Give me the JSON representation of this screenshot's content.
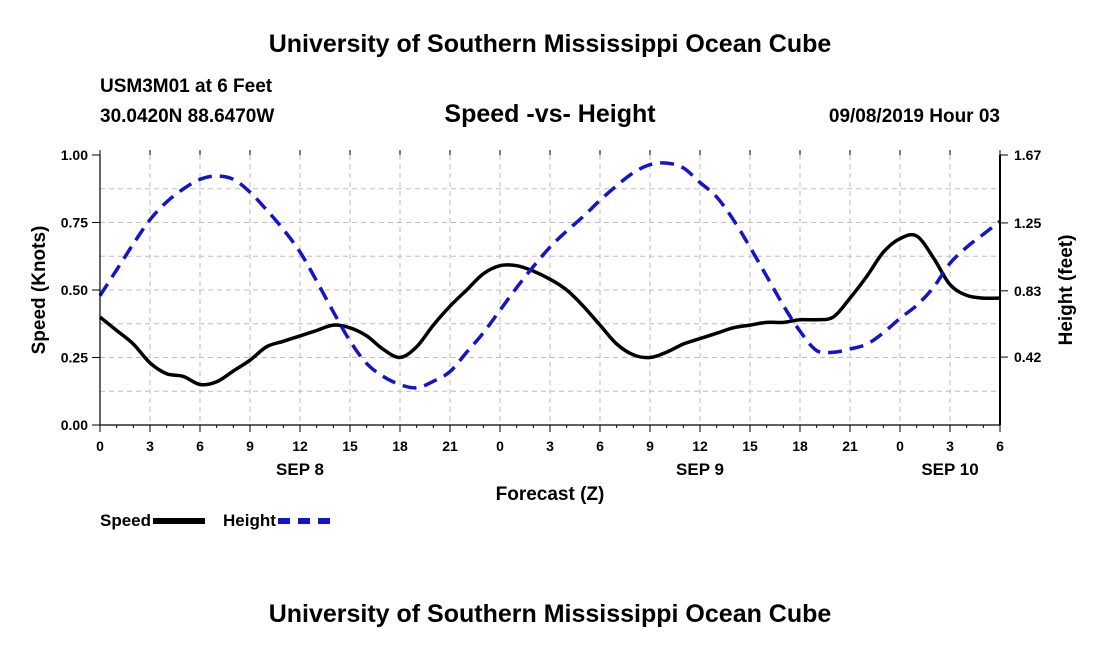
{
  "header": {
    "title": "University of Southern Mississippi Ocean Cube",
    "station": "USM3M01 at 6 Feet",
    "coordinates": "30.0420N 88.6470W",
    "chart_title": "Speed -vs- Height",
    "date": "09/08/2019 Hour 03"
  },
  "footer": {
    "title": "University of Southern Mississippi Ocean Cube"
  },
  "legend": {
    "speed_label": "Speed",
    "height_label": "Height"
  },
  "colors": {
    "speed": "#000000",
    "height": "#1414c8",
    "grid": "#bdbdbd"
  },
  "chart_data": {
    "type": "line",
    "title": "Speed -vs- Height",
    "xlabel": "Forecast (Z)",
    "ylabel": "Speed (Knots)",
    "y2label": "Height (feet)",
    "xlim": [
      0,
      54
    ],
    "ylim": [
      0,
      1.0
    ],
    "y2lim": [
      0,
      1.67
    ],
    "x_ticks": [
      0,
      3,
      6,
      9,
      12,
      15,
      18,
      21,
      24,
      27,
      30,
      33,
      36,
      39,
      42,
      45,
      48,
      51,
      54
    ],
    "x_tick_labels": [
      "0",
      "3",
      "6",
      "9",
      "12",
      "15",
      "18",
      "21",
      "0",
      "3",
      "6",
      "9",
      "12",
      "15",
      "18",
      "21",
      "0",
      "3",
      "6"
    ],
    "date_labels": [
      {
        "x": 12,
        "label": "SEP 8"
      },
      {
        "x": 36,
        "label": "SEP 9"
      },
      {
        "x": 51,
        "label": "SEP 10"
      }
    ],
    "y_ticks": [
      0,
      0.25,
      0.5,
      0.75,
      1.0
    ],
    "y_tick_labels": [
      "0.00",
      "0.25",
      "0.50",
      "0.75",
      "1.00"
    ],
    "y2_ticks": [
      0.42,
      0.83,
      1.25,
      1.67
    ],
    "y2_tick_labels": [
      "0.42",
      "0.83",
      "1.25",
      "1.67"
    ],
    "grid": true,
    "legend_position": "bottom-left",
    "series": [
      {
        "name": "Speed",
        "axis": "left",
        "style": "solid",
        "x": [
          0,
          1,
          2,
          3,
          4,
          5,
          6,
          7,
          8,
          9,
          10,
          11,
          12,
          13,
          14,
          15,
          16,
          17,
          18,
          19,
          20,
          21,
          22,
          23,
          24,
          25,
          26,
          27,
          28,
          29,
          30,
          31,
          32,
          33,
          34,
          35,
          36,
          37,
          38,
          39,
          40,
          41,
          42,
          43,
          44,
          45,
          46,
          47,
          48,
          49,
          50,
          51,
          52,
          53,
          54
        ],
        "values": [
          0.4,
          0.35,
          0.3,
          0.23,
          0.19,
          0.18,
          0.15,
          0.16,
          0.2,
          0.24,
          0.29,
          0.31,
          0.33,
          0.35,
          0.37,
          0.36,
          0.33,
          0.28,
          0.25,
          0.29,
          0.37,
          0.44,
          0.5,
          0.56,
          0.59,
          0.59,
          0.57,
          0.54,
          0.5,
          0.44,
          0.37,
          0.3,
          0.26,
          0.25,
          0.27,
          0.3,
          0.32,
          0.34,
          0.36,
          0.37,
          0.38,
          0.38,
          0.39,
          0.39,
          0.4,
          0.47,
          0.55,
          0.64,
          0.69,
          0.7,
          0.62,
          0.52,
          0.48,
          0.47,
          0.47
        ]
      },
      {
        "name": "Height",
        "axis": "right",
        "style": "dashed",
        "x": [
          0,
          1,
          2,
          3,
          4,
          5,
          6,
          7,
          8,
          9,
          10,
          11,
          12,
          13,
          14,
          15,
          16,
          17,
          18,
          19,
          20,
          21,
          22,
          23,
          24,
          25,
          26,
          27,
          28,
          29,
          30,
          31,
          32,
          33,
          34,
          35,
          36,
          37,
          38,
          39,
          40,
          41,
          42,
          43,
          44,
          45,
          46,
          47,
          48,
          49,
          50,
          51,
          52,
          53,
          54
        ],
        "values": [
          0.8,
          0.96,
          1.12,
          1.27,
          1.38,
          1.46,
          1.52,
          1.54,
          1.52,
          1.44,
          1.33,
          1.21,
          1.07,
          0.89,
          0.7,
          0.52,
          0.38,
          0.3,
          0.25,
          0.23,
          0.27,
          0.33,
          0.45,
          0.57,
          0.71,
          0.85,
          0.98,
          1.1,
          1.2,
          1.29,
          1.39,
          1.48,
          1.56,
          1.61,
          1.62,
          1.59,
          1.5,
          1.41,
          1.27,
          1.1,
          0.92,
          0.74,
          0.58,
          0.46,
          0.45,
          0.47,
          0.5,
          0.57,
          0.66,
          0.74,
          0.85,
          1.0,
          1.1,
          1.18,
          1.26
        ]
      }
    ]
  }
}
